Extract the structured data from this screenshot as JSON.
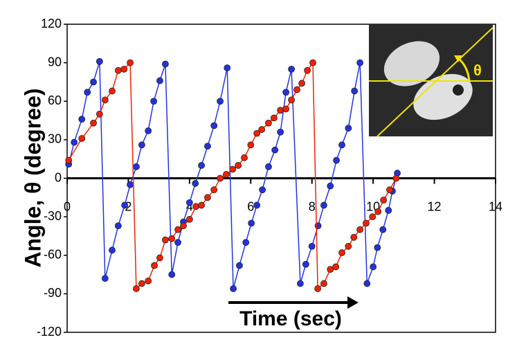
{
  "chart_data": {
    "type": "line",
    "y_label": "Angle,  θ (degree)",
    "annotation": "Time (sec)",
    "inset_label": "θ",
    "xlim": [
      0,
      14
    ],
    "xticks": [
      0,
      2,
      4,
      6,
      8,
      10,
      12,
      14
    ],
    "ylim": [
      -120,
      120
    ],
    "yticks": [
      -120,
      -90,
      -60,
      -30,
      0,
      30,
      60,
      90,
      120
    ],
    "series": [
      {
        "color": "#2233dd",
        "x": [
          0.05,
          0.23,
          0.48,
          0.66,
          0.86,
          1.06,
          1.24,
          1.47,
          1.67,
          1.88,
          2.06,
          2.26,
          2.44,
          2.65,
          2.83,
          3.03,
          3.21,
          3.42,
          3.62,
          3.8,
          4.0,
          4.19,
          4.39,
          4.59,
          4.8,
          5.0,
          5.23,
          5.43,
          5.63,
          5.84,
          6.02,
          6.2,
          6.38,
          6.58,
          6.79,
          6.97,
          7.15,
          7.33,
          7.62,
          7.8,
          8.0,
          8.2,
          8.39,
          8.6,
          8.8,
          8.98,
          9.19,
          9.39,
          9.57,
          9.8,
          10.0,
          10.14,
          10.32,
          10.5,
          10.63,
          10.79
        ],
        "values": [
          11,
          28,
          46,
          67,
          75,
          91,
          -78,
          -56,
          -37,
          -21,
          -5,
          9,
          26,
          37,
          60,
          76,
          89,
          -75,
          -50,
          -34,
          -19,
          -4,
          10,
          25,
          41,
          60,
          86,
          -86,
          -68,
          -50,
          -35,
          -21,
          -9,
          9,
          22,
          36,
          67,
          85,
          -82,
          -67,
          -53,
          -37,
          -21,
          -6,
          14,
          26,
          39,
          68,
          90,
          -82,
          -69,
          -54,
          -40,
          -25,
          -10,
          4
        ]
      },
      {
        "color": "#ee2200",
        "x": [
          0.05,
          0.48,
          0.86,
          1.06,
          1.24,
          1.47,
          1.67,
          1.86,
          2.06,
          2.26,
          2.44,
          2.65,
          2.85,
          3.03,
          3.21,
          3.42,
          3.62,
          3.8,
          4.0,
          4.21,
          4.39,
          4.59,
          4.8,
          5.0,
          5.2,
          5.41,
          5.59,
          5.79,
          6.0,
          6.2,
          6.36,
          6.58,
          6.76,
          6.97,
          7.15,
          7.33,
          7.51,
          7.67,
          7.85,
          8.03,
          8.19,
          8.39,
          8.6,
          8.78,
          8.98,
          9.19,
          9.37,
          9.57,
          9.77,
          9.98,
          10.16,
          10.34,
          10.54,
          10.75
        ],
        "values": [
          14,
          31,
          43,
          50,
          61,
          68,
          84,
          85,
          90,
          -86,
          -82,
          -80,
          -68,
          -62,
          -48,
          -47,
          -40,
          -37,
          -32,
          -22,
          -21,
          -15,
          -9,
          0,
          3,
          7,
          10,
          16,
          26,
          35,
          38,
          43,
          47,
          53,
          54,
          61,
          69,
          74,
          84,
          90,
          -86,
          -82,
          -71,
          -69,
          -58,
          -53,
          -46,
          -40,
          -35,
          -30,
          -26,
          -17,
          -9,
          0
        ]
      }
    ]
  }
}
